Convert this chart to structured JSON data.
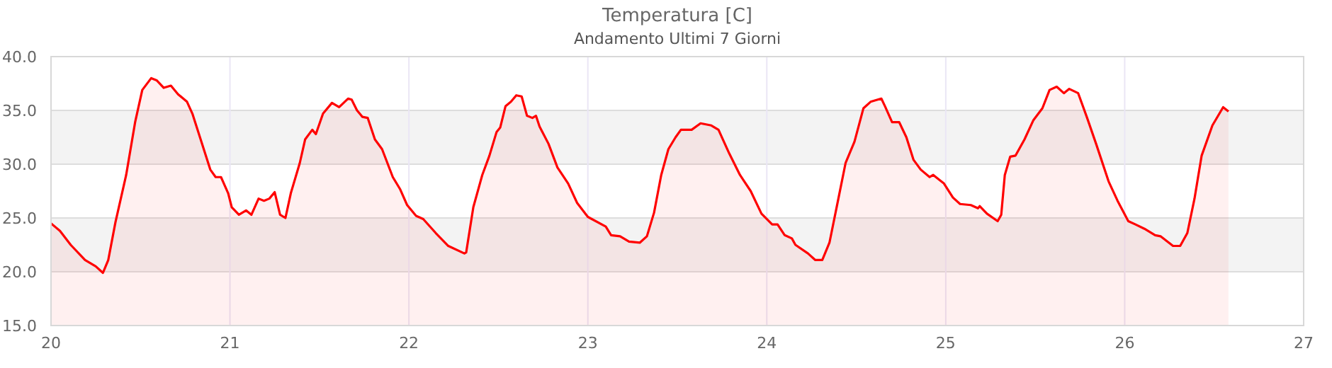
{
  "chart_data": {
    "type": "area",
    "title": "Temperatura [C]",
    "subtitle": "Andamento Ultimi 7 Giorni",
    "x": [
      20.0,
      20.05,
      20.11,
      20.19,
      20.25,
      20.29,
      20.32,
      20.36,
      20.42,
      20.47,
      20.51,
      20.56,
      20.59,
      20.63,
      20.67,
      20.71,
      20.76,
      20.79,
      20.84,
      20.89,
      20.92,
      20.95,
      20.99,
      21.01,
      21.05,
      21.09,
      21.12,
      21.16,
      21.19,
      21.22,
      21.25,
      21.28,
      21.31,
      21.34,
      21.39,
      21.42,
      21.46,
      21.48,
      21.52,
      21.57,
      21.61,
      21.66,
      21.68,
      21.71,
      21.74,
      21.77,
      21.81,
      21.85,
      21.91,
      21.95,
      21.99,
      22.04,
      22.08,
      22.15,
      22.22,
      22.31,
      22.32,
      22.36,
      22.41,
      22.45,
      22.49,
      22.51,
      22.54,
      22.57,
      22.6,
      22.63,
      22.66,
      22.69,
      22.71,
      22.73,
      22.78,
      22.83,
      22.89,
      22.94,
      23.0,
      23.1,
      23.13,
      23.18,
      23.23,
      23.29,
      23.33,
      23.37,
      23.41,
      23.45,
      23.49,
      23.52,
      23.58,
      23.63,
      23.69,
      23.73,
      23.79,
      23.85,
      23.91,
      23.97,
      24.03,
      24.06,
      24.1,
      24.14,
      24.16,
      24.23,
      24.27,
      24.31,
      24.35,
      24.4,
      24.44,
      24.49,
      24.54,
      24.58,
      24.64,
      24.66,
      24.7,
      24.74,
      24.78,
      24.82,
      24.86,
      24.91,
      24.93,
      24.99,
      25.04,
      25.08,
      25.14,
      25.18,
      25.19,
      25.23,
      25.29,
      25.31,
      25.33,
      25.36,
      25.39,
      25.44,
      25.49,
      25.54,
      25.58,
      25.62,
      25.66,
      25.69,
      25.74,
      25.79,
      25.84,
      25.91,
      25.96,
      26.02,
      26.06,
      26.11,
      26.17,
      26.2,
      26.27,
      26.31,
      26.35,
      26.39,
      26.43,
      26.49,
      26.55,
      26.58
    ],
    "series": [
      {
        "color": "#ff0000",
        "values": [
          24.5,
          23.8,
          22.5,
          21.1,
          20.5,
          19.9,
          21.1,
          24.6,
          29.0,
          33.9,
          36.9,
          38.0,
          37.8,
          37.1,
          37.3,
          36.5,
          35.8,
          34.7,
          32.1,
          29.5,
          28.8,
          28.8,
          27.3,
          26.0,
          25.3,
          25.7,
          25.3,
          26.8,
          26.6,
          26.8,
          27.4,
          25.3,
          25.0,
          27.3,
          30.1,
          32.3,
          33.2,
          32.8,
          34.7,
          35.7,
          35.3,
          36.1,
          36.0,
          35.0,
          34.4,
          34.3,
          32.3,
          31.4,
          28.8,
          27.7,
          26.2,
          25.2,
          24.9,
          23.6,
          22.4,
          21.7,
          21.8,
          26.0,
          29.0,
          30.8,
          33.0,
          33.4,
          35.4,
          35.8,
          36.4,
          36.3,
          34.5,
          34.3,
          34.5,
          33.5,
          31.9,
          29.7,
          28.2,
          26.4,
          25.1,
          24.2,
          23.4,
          23.3,
          22.8,
          22.7,
          23.3,
          25.5,
          29.0,
          31.4,
          32.5,
          33.2,
          33.2,
          33.8,
          33.6,
          33.2,
          31.0,
          29.0,
          27.5,
          25.4,
          24.4,
          24.4,
          23.4,
          23.1,
          22.5,
          21.7,
          21.1,
          21.1,
          22.7,
          26.8,
          30.1,
          32.1,
          35.2,
          35.8,
          36.1,
          35.4,
          33.9,
          33.9,
          32.5,
          30.4,
          29.5,
          28.8,
          29.0,
          28.2,
          26.9,
          26.3,
          26.2,
          25.9,
          26.1,
          25.4,
          24.7,
          25.3,
          29.0,
          30.7,
          30.8,
          32.3,
          34.1,
          35.2,
          36.9,
          37.2,
          36.6,
          37.0,
          36.6,
          34.3,
          31.9,
          28.4,
          26.6,
          24.7,
          24.4,
          24.0,
          23.4,
          23.3,
          22.4,
          22.4,
          23.6,
          26.8,
          30.8,
          33.6,
          35.3,
          34.9
        ]
      }
    ],
    "xlim": [
      20,
      27
    ],
    "xticks": [
      20,
      21,
      22,
      23,
      24,
      25,
      26,
      27
    ],
    "ylim": [
      15,
      40
    ],
    "yticks": [
      {
        "value": 15,
        "label": "15.0"
      },
      {
        "value": 20,
        "label": "20.0"
      },
      {
        "value": 25,
        "label": "25.0"
      },
      {
        "value": 30,
        "label": "30.0"
      },
      {
        "value": 35,
        "label": "35.0"
      },
      {
        "value": 40,
        "label": "40.0"
      }
    ],
    "bands": [
      {
        "axis": "y",
        "from": 20,
        "to": 25,
        "color": "#f3f3f3"
      },
      {
        "axis": "y",
        "from": 30,
        "to": 35,
        "color": "#f3f3f3"
      }
    ],
    "grid": true
  }
}
